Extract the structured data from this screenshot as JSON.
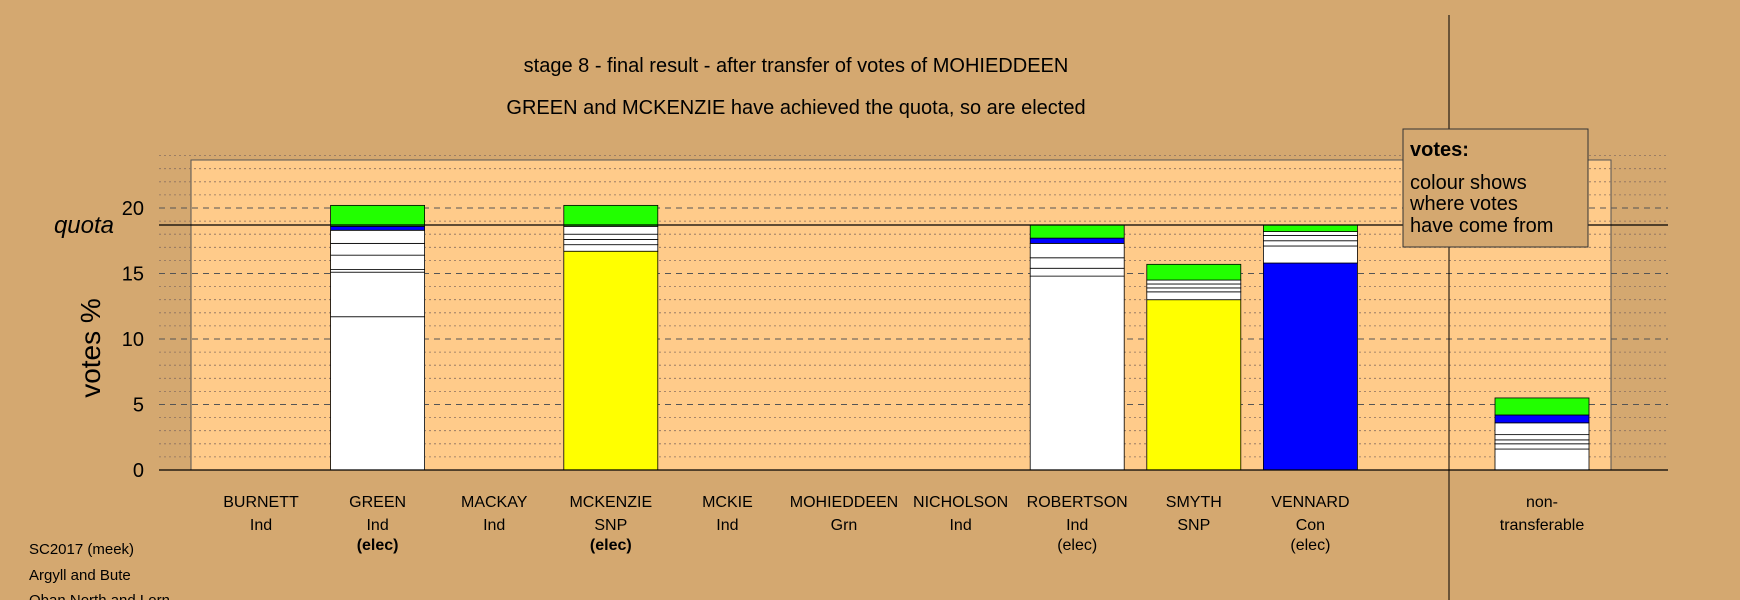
{
  "colors": {
    "background": "#d4a870",
    "plot_bg": "#ffcb8a",
    "independent": "#ffffff",
    "snp": "#ffff00",
    "con": "#0000ff",
    "grn": "#22ff00"
  },
  "chart_data": {
    "type": "bar",
    "stacked": true,
    "title": "stage 8 - final result - after transfer of votes of MOHIEDDEEN",
    "subtitle": "GREEN and MCKENZIE have achieved the quota, so are elected",
    "ylabel": "votes %",
    "ylim": [
      0,
      24
    ],
    "yticks": [
      0,
      5,
      10,
      15,
      20
    ],
    "quota": 18.7,
    "quota_label": "quota",
    "grid": true,
    "legend": {
      "placement": "top-right",
      "title": "votes:",
      "lines": [
        "colour shows",
        "where votes",
        "have come from"
      ]
    },
    "candidates": [
      {
        "name": "BURNETT",
        "party": "Ind",
        "status": "",
        "segments": []
      },
      {
        "name": "GREEN",
        "party": "Ind",
        "status": "(elec)",
        "status_bold": true,
        "segments": [
          {
            "value": 11.7,
            "color": "#ffffff"
          },
          {
            "value": 3.4,
            "color": "#ffffff"
          },
          {
            "value": 0.2,
            "color": "#ffffff"
          },
          {
            "value": 1.1,
            "color": "#ffffff"
          },
          {
            "value": 0.9,
            "color": "#ffffff"
          },
          {
            "value": 1.0,
            "color": "#ffffff"
          },
          {
            "value": 0.3,
            "color": "#0000ff"
          },
          {
            "value": 1.6,
            "color": "#22ff00"
          }
        ]
      },
      {
        "name": "MACKAY",
        "party": "Ind",
        "status": "",
        "segments": []
      },
      {
        "name": "MCKENZIE",
        "party": "SNP",
        "status": "(elec)",
        "status_bold": true,
        "segments": [
          {
            "value": 16.7,
            "color": "#ffff00"
          },
          {
            "value": 0.5,
            "color": "#ffffff"
          },
          {
            "value": 0.4,
            "color": "#ffffff"
          },
          {
            "value": 0.4,
            "color": "#ffffff"
          },
          {
            "value": 0.6,
            "color": "#ffffff"
          },
          {
            "value": 1.6,
            "color": "#22ff00"
          }
        ]
      },
      {
        "name": "MCKIE",
        "party": "Ind",
        "status": "",
        "segments": []
      },
      {
        "name": "MOHIEDDEEN",
        "party": "Grn",
        "status": "",
        "segments": []
      },
      {
        "name": "NICHOLSON",
        "party": "Ind",
        "status": "",
        "segments": []
      },
      {
        "name": "ROBERTSON",
        "party": "Ind",
        "status": "(elec)",
        "status_bold": false,
        "segments": [
          {
            "value": 14.8,
            "color": "#ffffff"
          },
          {
            "value": 0.6,
            "color": "#ffffff"
          },
          {
            "value": 0.8,
            "color": "#ffffff"
          },
          {
            "value": 1.1,
            "color": "#ffffff"
          },
          {
            "value": 0.4,
            "color": "#0000ff"
          },
          {
            "value": 1.0,
            "color": "#22ff00"
          }
        ]
      },
      {
        "name": "SMYTH",
        "party": "SNP",
        "status": "",
        "segments": [
          {
            "value": 13.0,
            "color": "#ffff00"
          },
          {
            "value": 0.6,
            "color": "#ffffff"
          },
          {
            "value": 0.3,
            "color": "#ffffff"
          },
          {
            "value": 0.3,
            "color": "#ffffff"
          },
          {
            "value": 0.3,
            "color": "#ffffff"
          },
          {
            "value": 1.2,
            "color": "#22ff00"
          }
        ]
      },
      {
        "name": "VENNARD",
        "party": "Con",
        "status": "(elec)",
        "status_bold": false,
        "segments": [
          {
            "value": 15.8,
            "color": "#0000ff"
          },
          {
            "value": 1.3,
            "color": "#ffffff"
          },
          {
            "value": 0.4,
            "color": "#ffffff"
          },
          {
            "value": 0.4,
            "color": "#ffffff"
          },
          {
            "value": 0.3,
            "color": "#ffffff"
          },
          {
            "value": 0.5,
            "color": "#22ff00"
          }
        ]
      }
    ],
    "non_transferable": {
      "label_line1": "non-",
      "label_line2": "transferable",
      "segments": [
        {
          "value": 1.6,
          "color": "#ffffff"
        },
        {
          "value": 0.4,
          "color": "#ffffff"
        },
        {
          "value": 0.3,
          "color": "#ffffff"
        },
        {
          "value": 0.4,
          "color": "#ffffff"
        },
        {
          "value": 0.9,
          "color": "#ffffff"
        },
        {
          "value": 0.6,
          "color": "#0000ff"
        },
        {
          "value": 1.3,
          "color": "#22ff00"
        }
      ]
    }
  },
  "footer": {
    "line1": "SC2017 (meek)",
    "line2": "Argyll and Bute",
    "line3": "Oban North and Lorn"
  }
}
